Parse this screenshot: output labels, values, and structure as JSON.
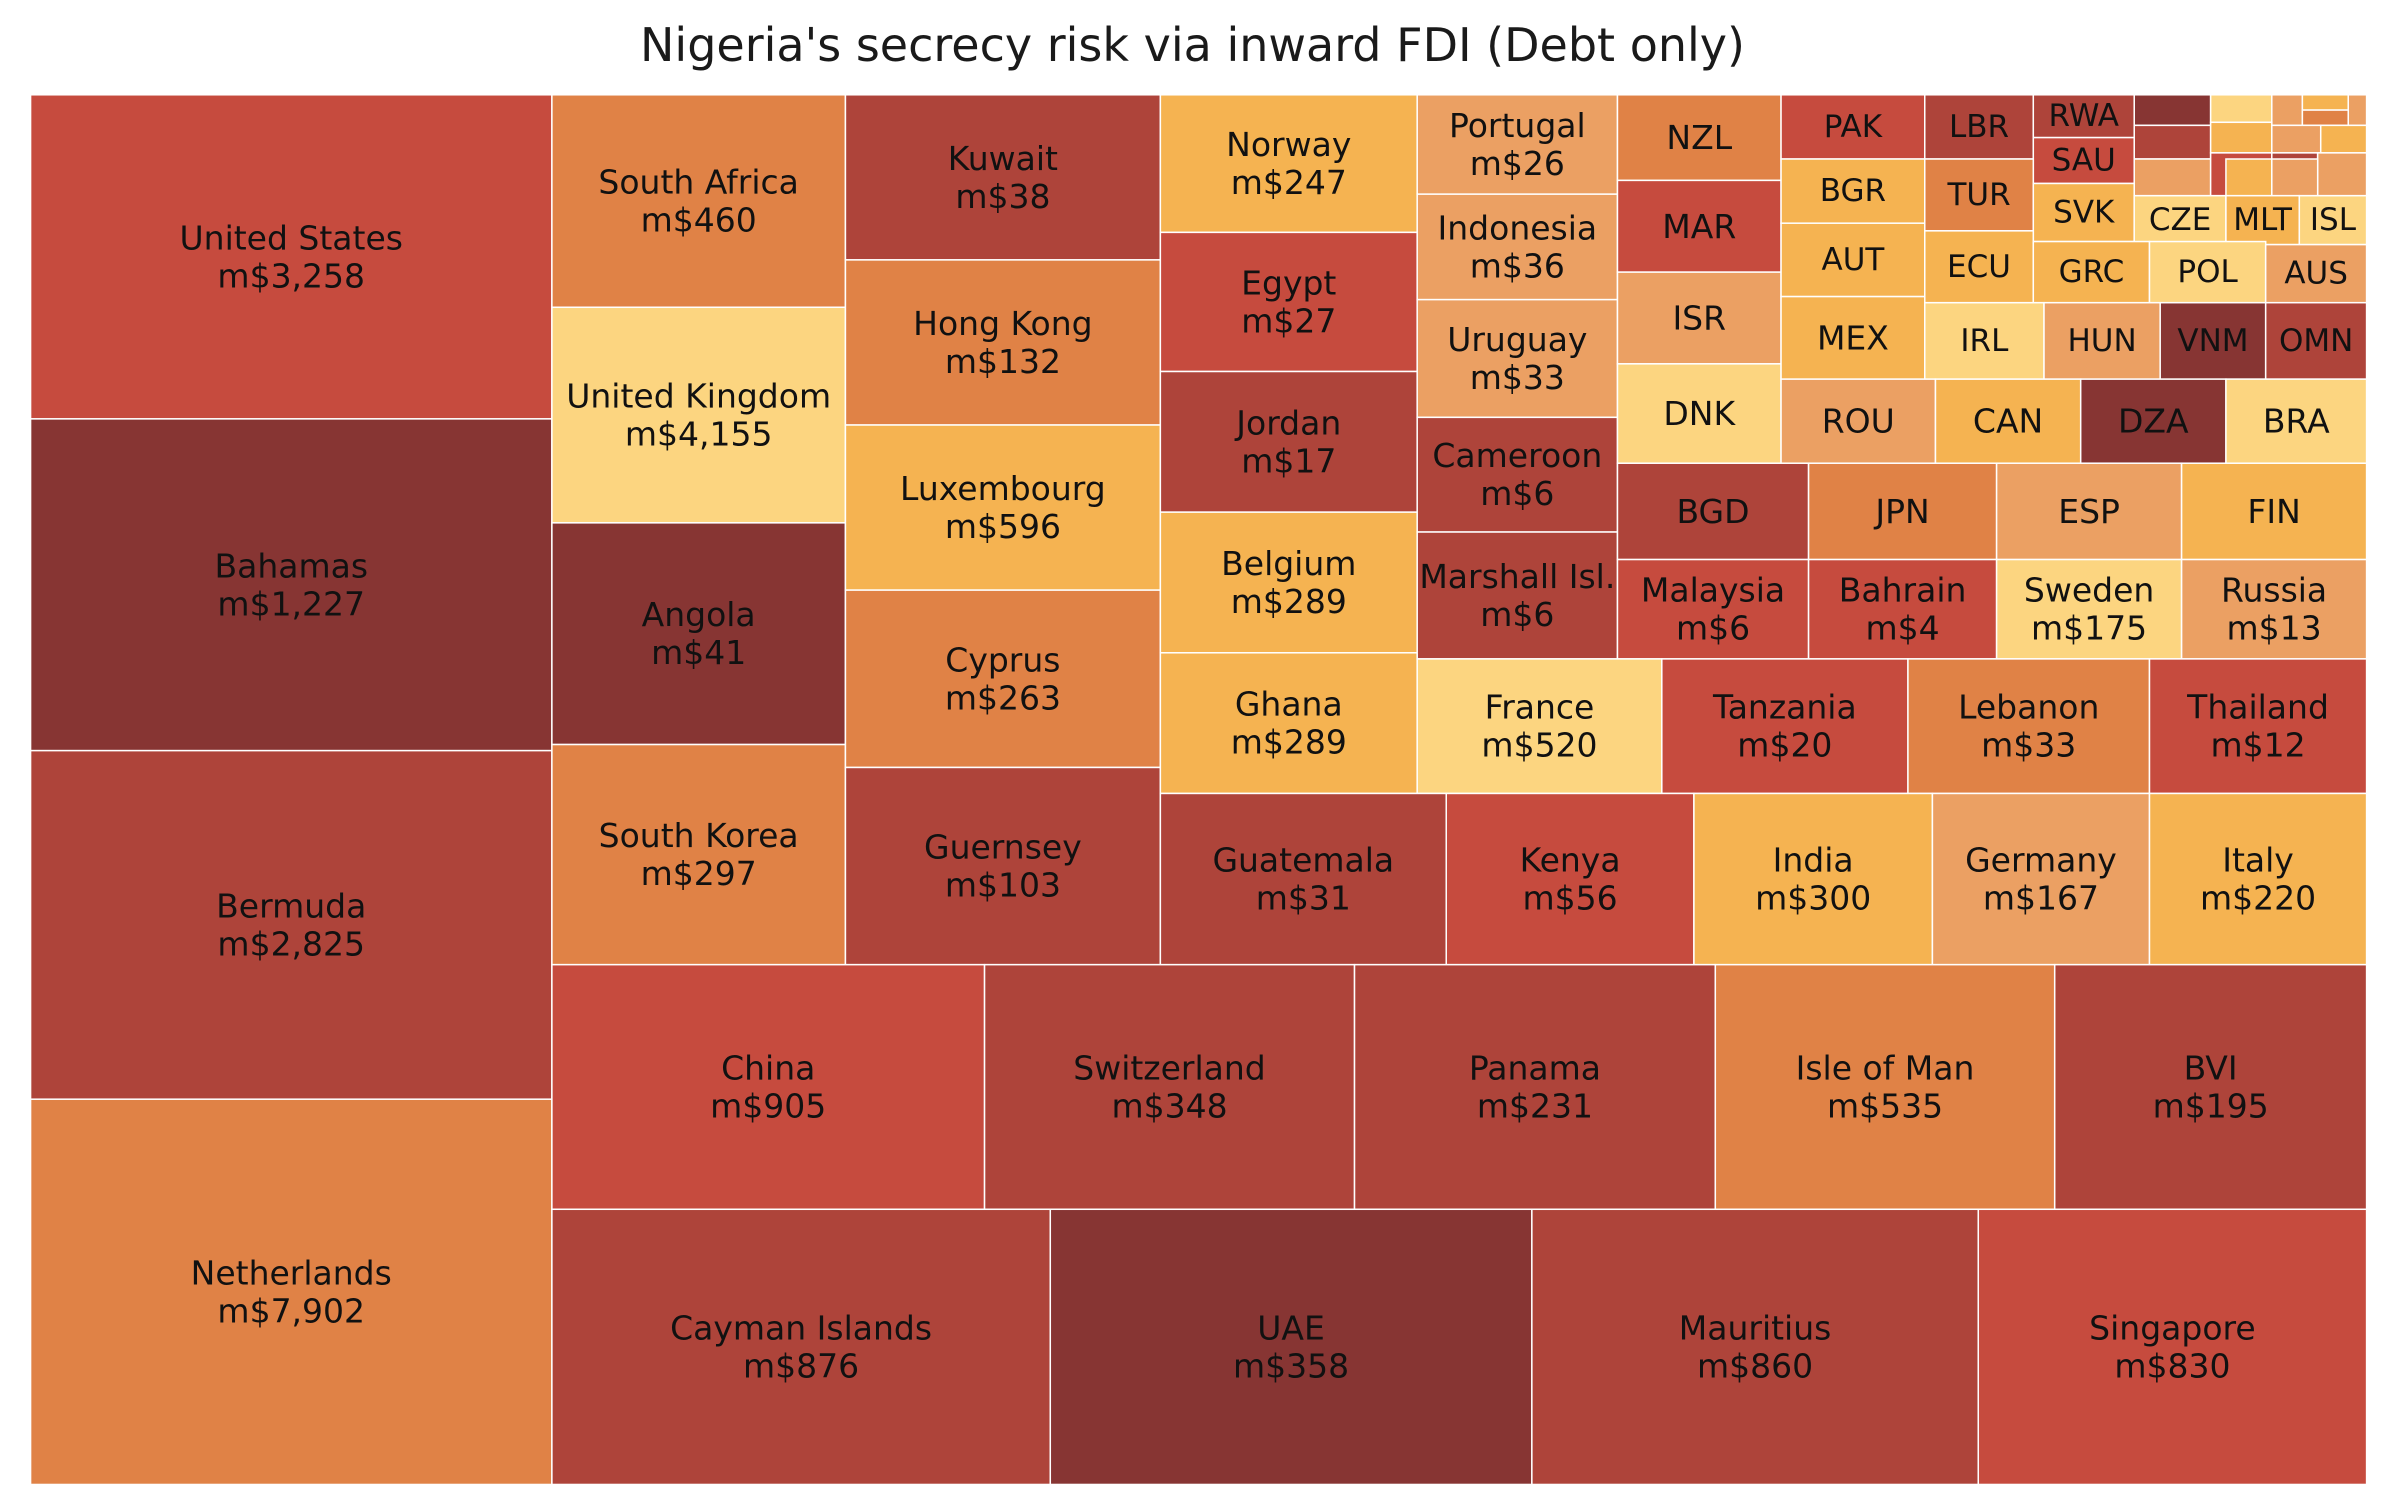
{
  "chart_data": {
    "type": "treemap",
    "title": "Nigeria's secrecy risk via inward FDI (Debt only)",
    "value_prefix": "m$",
    "color_scale": [
      "#FCD580",
      "#F5B351",
      "#EBA063",
      "#E08246",
      "#C64B3E",
      "#AE443A",
      "#873533"
    ],
    "items": [
      {
        "name": "United States",
        "label": "m$3,258",
        "value": 3258,
        "shade": 4
      },
      {
        "name": "Bahamas",
        "label": "m$1,227",
        "value": 1227,
        "shade": 6
      },
      {
        "name": "Bermuda",
        "label": "m$2,825",
        "value": 2825,
        "shade": 5
      },
      {
        "name": "Netherlands",
        "label": "m$7,902",
        "value": 7902,
        "shade": 3
      },
      {
        "name": "South Africa",
        "label": "m$460",
        "value": 460,
        "shade": 3
      },
      {
        "name": "United Kingdom",
        "label": "m$4,155",
        "value": 4155,
        "shade": 0
      },
      {
        "name": "Angola",
        "label": "m$41",
        "value": 41,
        "shade": 6
      },
      {
        "name": "South Korea",
        "label": "m$297",
        "value": 297,
        "shade": 3
      },
      {
        "name": "Kuwait",
        "label": "m$38",
        "value": 38,
        "shade": 5
      },
      {
        "name": "Hong Kong",
        "label": "m$132",
        "value": 132,
        "shade": 3
      },
      {
        "name": "Luxembourg",
        "label": "m$596",
        "value": 596,
        "shade": 1
      },
      {
        "name": "Cyprus",
        "label": "m$263",
        "value": 263,
        "shade": 3
      },
      {
        "name": "Guernsey",
        "label": "m$103",
        "value": 103,
        "shade": 5
      },
      {
        "name": "Norway",
        "label": "m$247",
        "value": 247,
        "shade": 1
      },
      {
        "name": "Egypt",
        "label": "m$27",
        "value": 27,
        "shade": 4
      },
      {
        "name": "Jordan",
        "label": "m$17",
        "value": 17,
        "shade": 5
      },
      {
        "name": "Belgium",
        "label": "m$289",
        "value": 289,
        "shade": 1
      },
      {
        "name": "Ghana",
        "label": "m$289",
        "value": 289,
        "shade": 1
      },
      {
        "name": "Portugal",
        "label": "m$26",
        "value": 26,
        "shade": 2
      },
      {
        "name": "Indonesia",
        "label": "m$36",
        "value": 36,
        "shade": 2
      },
      {
        "name": "Uruguay",
        "label": "m$33",
        "value": 33,
        "shade": 2
      },
      {
        "name": "Cameroon",
        "label": "m$6",
        "value": 6,
        "shade": 5
      },
      {
        "name": "Marshall Isl.",
        "label": "m$6",
        "value": 6,
        "shade": 5
      },
      {
        "name": "NZL",
        "label": "",
        "shade": 3
      },
      {
        "name": "MAR",
        "label": "",
        "shade": 4
      },
      {
        "name": "ISR",
        "label": "",
        "shade": 2
      },
      {
        "name": "DNK",
        "label": "",
        "shade": 0
      },
      {
        "name": "PAK",
        "label": "",
        "shade": 4
      },
      {
        "name": "LBR",
        "label": "",
        "shade": 5
      },
      {
        "name": "RWA",
        "label": "",
        "shade": 5
      },
      {
        "name": "SAU",
        "label": "",
        "shade": 4
      },
      {
        "name": "BGR",
        "label": "",
        "shade": 1
      },
      {
        "name": "TUR",
        "label": "",
        "shade": 3
      },
      {
        "name": "SVK",
        "label": "",
        "shade": 1
      },
      {
        "name": "CZE",
        "label": "",
        "shade": 0
      },
      {
        "name": "MLT",
        "label": "",
        "shade": 1
      },
      {
        "name": "ISL",
        "label": "",
        "shade": 0
      },
      {
        "name": "AUT",
        "label": "",
        "shade": 1
      },
      {
        "name": "ECU",
        "label": "",
        "shade": 1
      },
      {
        "name": "GRC",
        "label": "",
        "shade": 1
      },
      {
        "name": "POL",
        "label": "",
        "shade": 0
      },
      {
        "name": "AUS",
        "label": "",
        "shade": 2
      },
      {
        "name": "MEX",
        "label": "",
        "shade": 1
      },
      {
        "name": "IRL",
        "label": "",
        "shade": 0
      },
      {
        "name": "HUN",
        "label": "",
        "shade": 2
      },
      {
        "name": "VNM",
        "label": "",
        "shade": 6
      },
      {
        "name": "OMN",
        "label": "",
        "shade": 5
      },
      {
        "name": "ROU",
        "label": "",
        "shade": 2
      },
      {
        "name": "CAN",
        "label": "",
        "shade": 1
      },
      {
        "name": "DZA",
        "label": "",
        "shade": 6
      },
      {
        "name": "BRA",
        "label": "",
        "shade": 0
      },
      {
        "name": "BGD",
        "label": "",
        "shade": 5
      },
      {
        "name": "JPN",
        "label": "",
        "shade": 3
      },
      {
        "name": "ESP",
        "label": "",
        "shade": 2
      },
      {
        "name": "FIN",
        "label": "",
        "shade": 1
      },
      {
        "name": "Malaysia",
        "label": "m$6",
        "value": 6,
        "shade": 4
      },
      {
        "name": "Bahrain",
        "label": "m$4",
        "value": 4,
        "shade": 4
      },
      {
        "name": "Sweden",
        "label": "m$175",
        "value": 175,
        "shade": 0
      },
      {
        "name": "Russia",
        "label": "m$13",
        "value": 13,
        "shade": 2
      },
      {
        "name": "France",
        "label": "m$520",
        "value": 520,
        "shade": 0
      },
      {
        "name": "Tanzania",
        "label": "m$20",
        "value": 20,
        "shade": 4
      },
      {
        "name": "Lebanon",
        "label": "m$33",
        "value": 33,
        "shade": 3
      },
      {
        "name": "Thailand",
        "label": "m$12",
        "value": 12,
        "shade": 4
      },
      {
        "name": "Guatemala",
        "label": "m$31",
        "value": 31,
        "shade": 5
      },
      {
        "name": "Kenya",
        "label": "m$56",
        "value": 56,
        "shade": 4
      },
      {
        "name": "India",
        "label": "m$300",
        "value": 300,
        "shade": 1
      },
      {
        "name": "Germany",
        "label": "m$167",
        "value": 167,
        "shade": 2
      },
      {
        "name": "Italy",
        "label": "m$220",
        "value": 220,
        "shade": 1
      },
      {
        "name": "China",
        "label": "m$905",
        "value": 905,
        "shade": 4
      },
      {
        "name": "Switzerland",
        "label": "m$348",
        "value": 348,
        "shade": 5
      },
      {
        "name": "Panama",
        "label": "m$231",
        "value": 231,
        "shade": 5
      },
      {
        "name": "Isle of Man",
        "label": "m$535",
        "value": 535,
        "shade": 3
      },
      {
        "name": "BVI",
        "label": "m$195",
        "value": 195,
        "shade": 5
      },
      {
        "name": "Cayman Islands",
        "label": "m$876",
        "value": 876,
        "shade": 5
      },
      {
        "name": "UAE",
        "label": "m$358",
        "value": 358,
        "shade": 6
      },
      {
        "name": "Mauritius",
        "label": "m$860",
        "value": 860,
        "shade": 5
      },
      {
        "name": "Singapore",
        "label": "m$830",
        "value": 830,
        "shade": 4
      }
    ],
    "unlabeled_shades": [
      6,
      0,
      2,
      1,
      2,
      3,
      5,
      1,
      2,
      1,
      2,
      4,
      5,
      2,
      0,
      1,
      2
    ]
  }
}
